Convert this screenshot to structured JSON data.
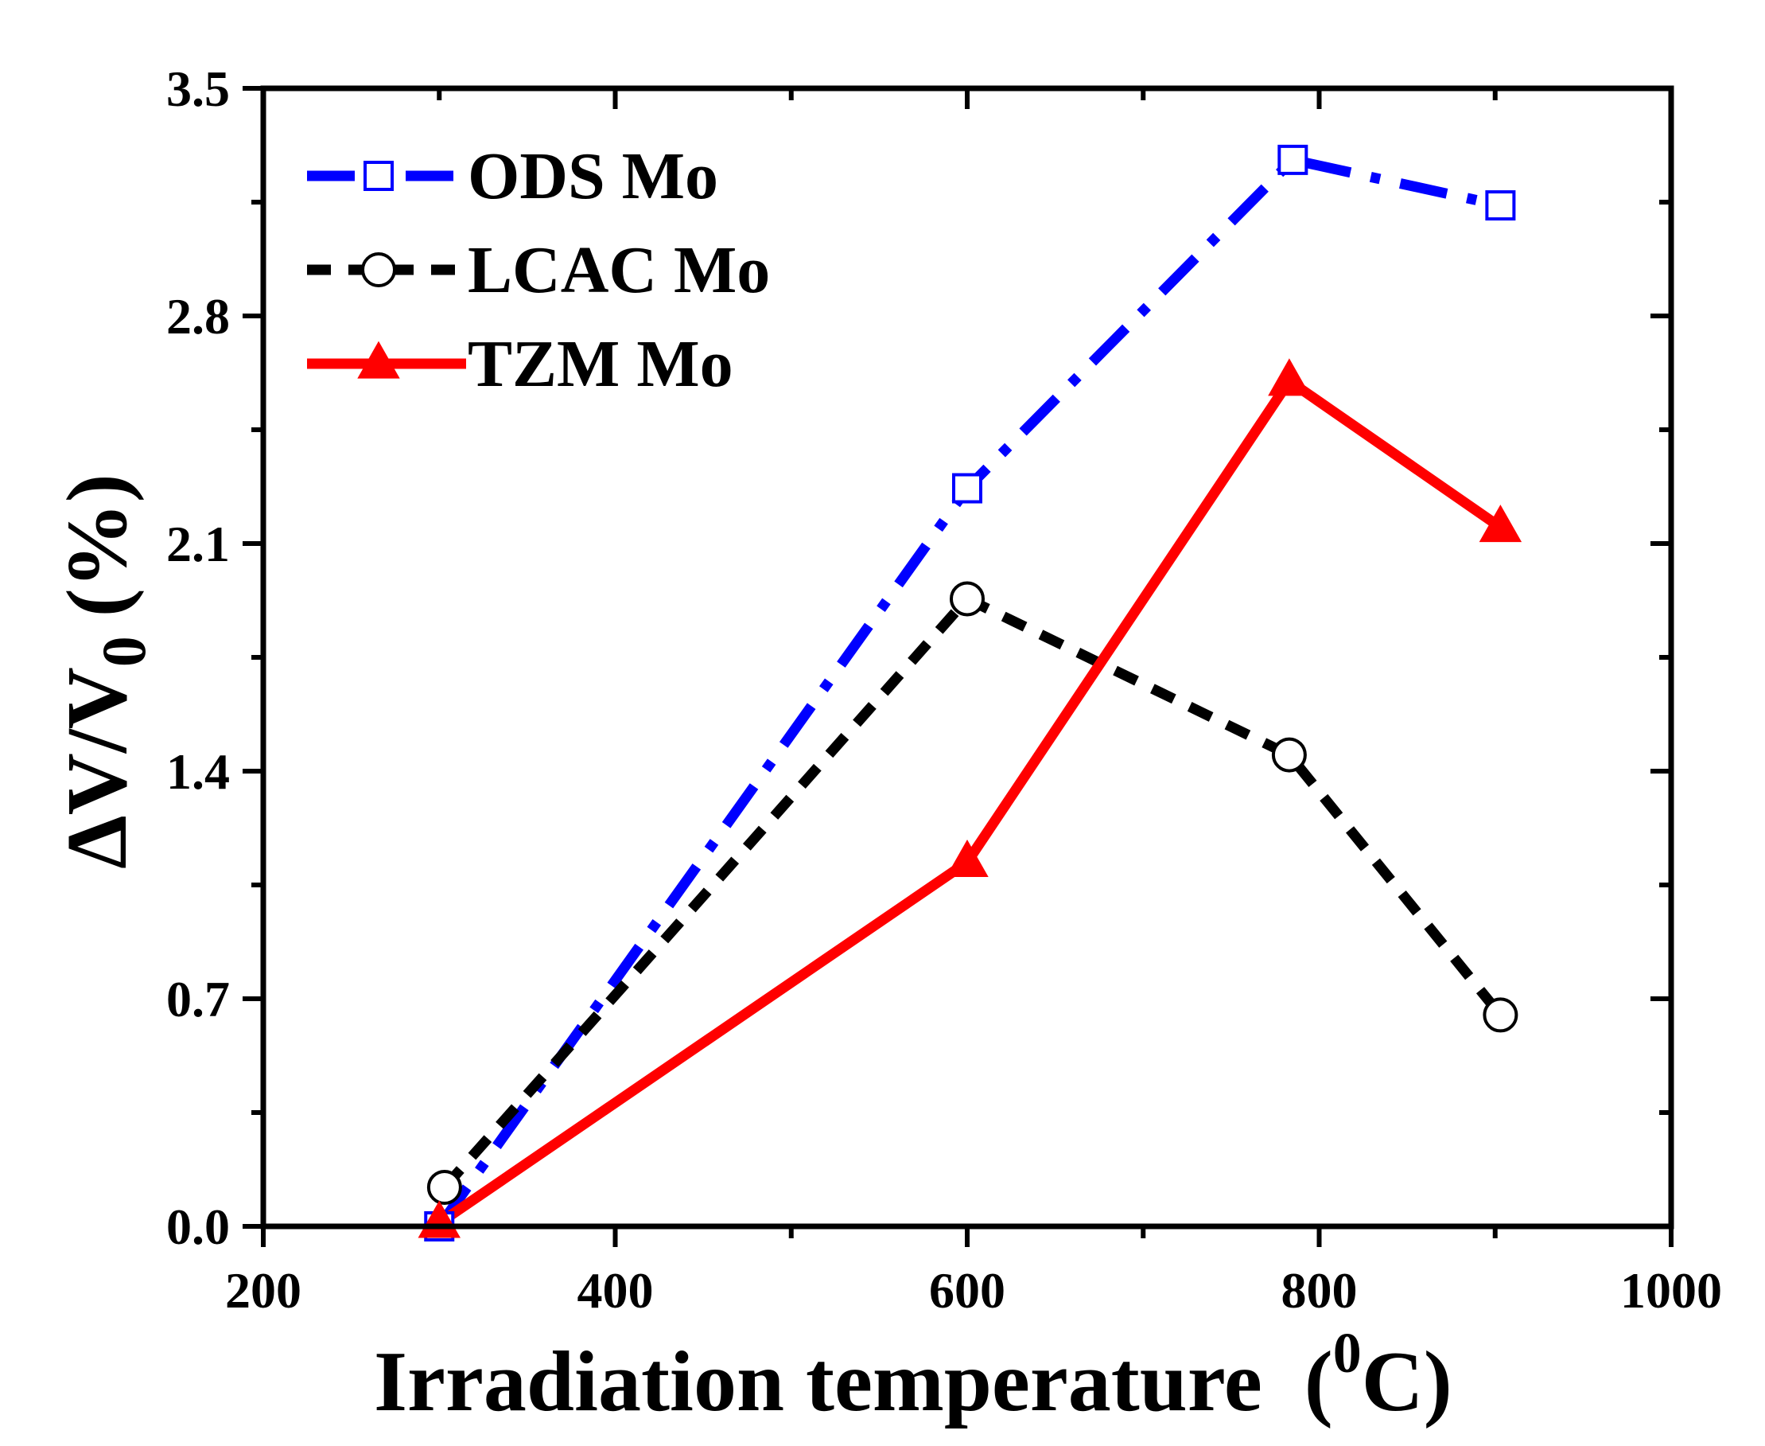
{
  "chart_data": {
    "type": "line",
    "x_axis": {
      "label_main": "Irradiation temperature",
      "label_unit_open": "(",
      "label_unit_sup": "0",
      "label_unit_close": "C)",
      "range": [
        200,
        1000
      ],
      "major_ticks": [
        200,
        400,
        600,
        800,
        1000
      ],
      "tick_labels": [
        "200",
        "400",
        "600",
        "800",
        "1000"
      ]
    },
    "y_axis": {
      "label_main": "ΔV/V",
      "label_sub": "0",
      "label_unit": "(%)",
      "range": [
        0,
        3.5
      ],
      "major_ticks": [
        0,
        0.7,
        1.4,
        2.1,
        2.8,
        3.5
      ],
      "tick_labels": [
        "0.0",
        "0.7",
        "1.4",
        "2.1",
        "2.8",
        "3.5"
      ]
    },
    "legend_position": "top-left",
    "series": [
      {
        "name": "ODS Mo",
        "color": "#0000ff",
        "marker": "square-open",
        "line_style": "dash-dot",
        "x": [
          300,
          600,
          785,
          903
        ],
        "y": [
          0.0,
          2.27,
          3.28,
          3.14
        ]
      },
      {
        "name": "LCAC Mo",
        "color": "#000000",
        "marker": "circle-open",
        "line_style": "dashed",
        "x": [
          303,
          600,
          783,
          903
        ],
        "y": [
          0.12,
          1.93,
          1.45,
          0.65
        ]
      },
      {
        "name": "TZM Mo",
        "color": "#ff0000",
        "marker": "triangle-filled",
        "line_style": "solid",
        "x": [
          300,
          600,
          783,
          903
        ],
        "y": [
          0.01,
          1.12,
          2.6,
          2.15
        ]
      }
    ]
  }
}
